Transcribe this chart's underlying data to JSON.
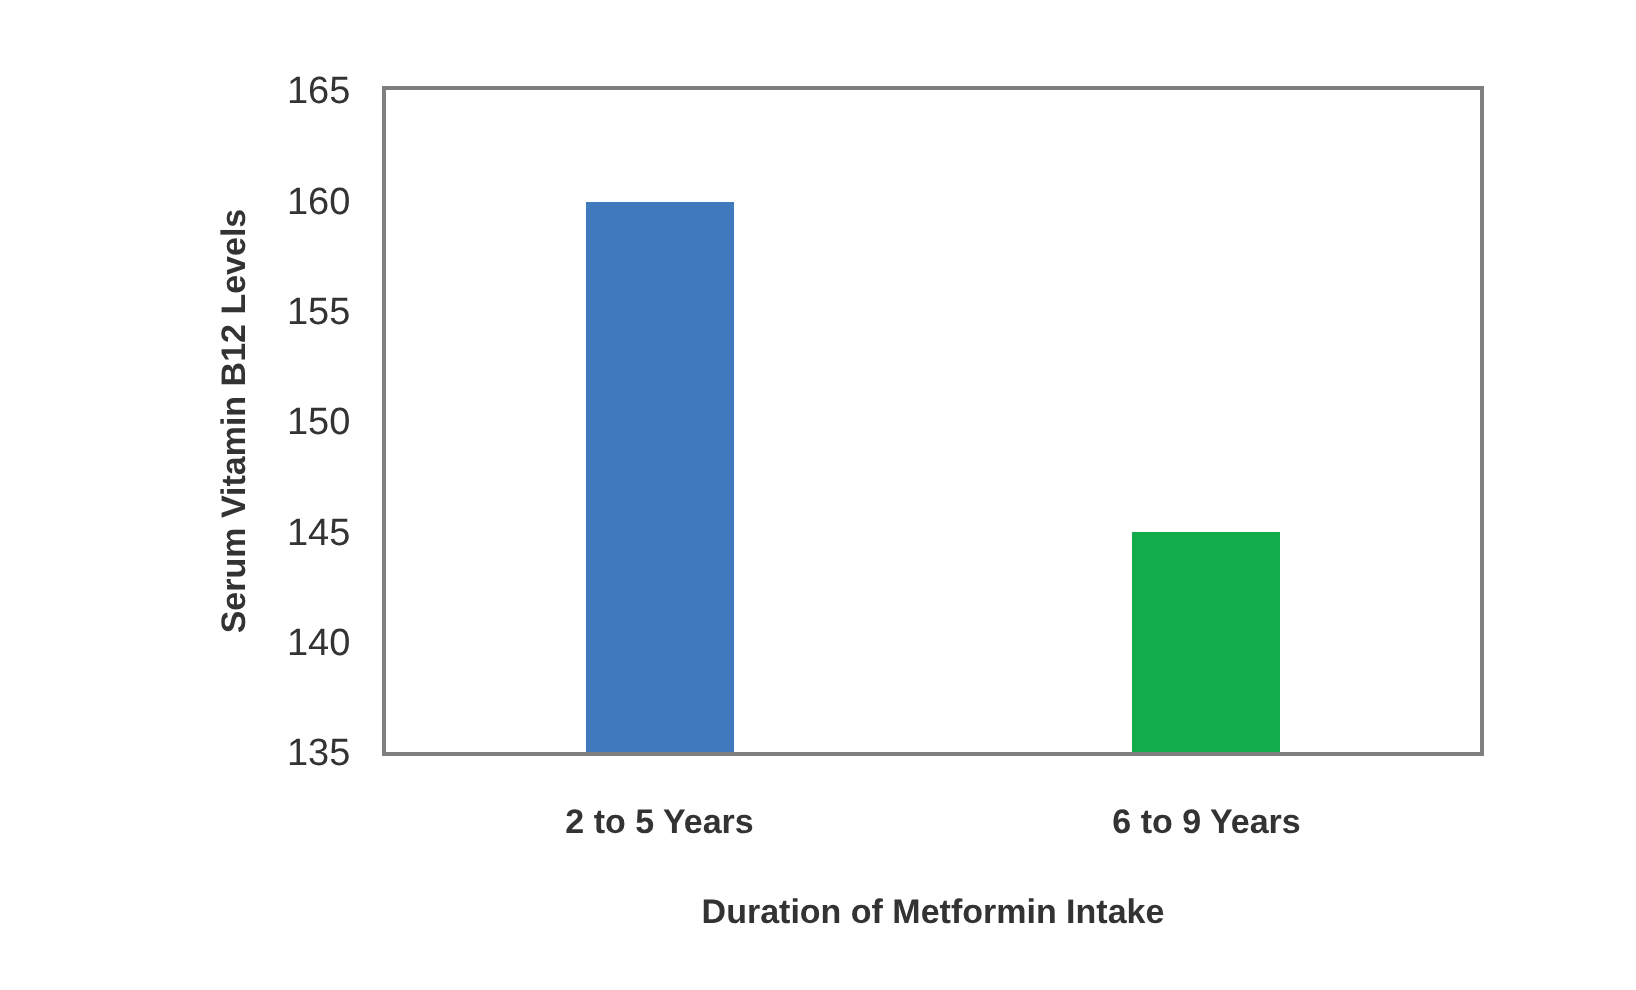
{
  "chart_data": {
    "type": "bar",
    "xlabel": "Duration of Metformin Intake",
    "ylabel": "Serum Vitamin B12 Levels",
    "categories": [
      "2 to 5 Years",
      "6 to 9 Years"
    ],
    "values": [
      159.9,
      145
    ],
    "colors": [
      "#3f7abf",
      "#12ad4a"
    ],
    "ylim": [
      135,
      165
    ],
    "yticks": [
      135,
      140,
      145,
      150,
      155,
      160,
      165
    ]
  }
}
